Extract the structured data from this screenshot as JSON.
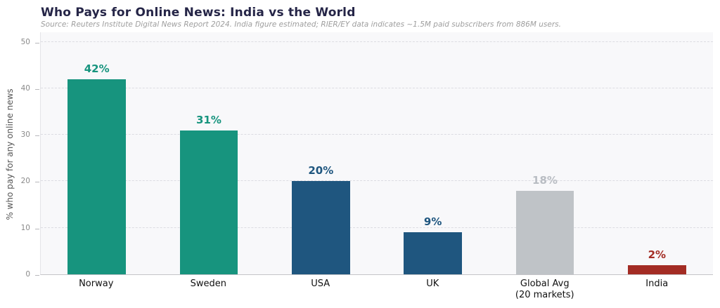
{
  "header": {
    "title": "Who Pays for Online News: India vs the World",
    "subtitle": "Source: Reuters Institute Digital News Report 2024. India figure estimated; RIER/EY data indicates ~1.5M paid subscribers from 886M users."
  },
  "chart_data": {
    "type": "bar",
    "title": "Who Pays for Online News: India vs the World",
    "subtitle": "Source: Reuters Institute Digital News Report 2024. India figure estimated; RIER/EY data indicates ~1.5M paid subscribers from 886M users.",
    "xlabel": "",
    "ylabel": "% who pay for any online news",
    "categories": [
      "Norway",
      "Sweden",
      "USA",
      "UK",
      "Global Avg\n(20 markets)",
      "India"
    ],
    "values": [
      42,
      31,
      20,
      9,
      18,
      2
    ],
    "value_labels": [
      "42%",
      "31%",
      "20%",
      "9%",
      "18%",
      "2%"
    ],
    "bar_colors": [
      "#17947e",
      "#17947e",
      "#1f567f",
      "#1f567f",
      "#bfc3c7",
      "#a32c24"
    ],
    "value_label_colors": [
      "#17947e",
      "#17947e",
      "#1f567f",
      "#1f567f",
      "#b9bdc3",
      "#a32c24"
    ],
    "ylim": [
      0,
      50
    ],
    "yticks": [
      0,
      10,
      20,
      30,
      40,
      50
    ],
    "grid": true,
    "grid_style": "dashed",
    "legend": false,
    "plot_background": "#f8f8fa"
  }
}
